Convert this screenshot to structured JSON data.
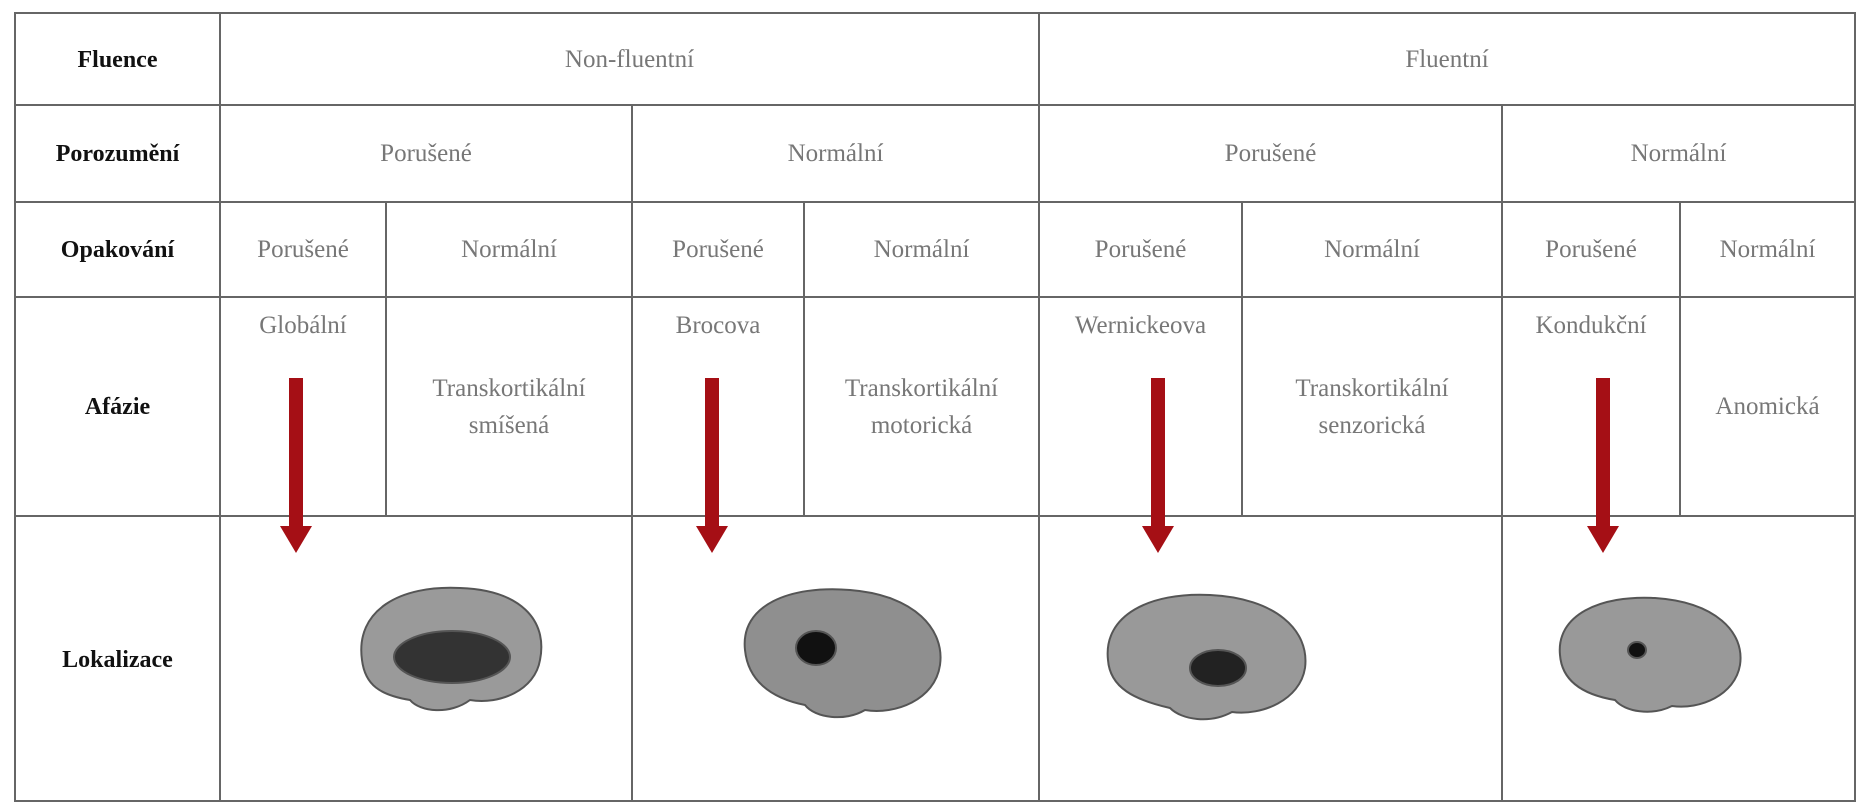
{
  "table": {
    "rows": [
      {
        "label": "Fluence",
        "cells": [
          "Non-fluentní",
          "Fluentní"
        ]
      },
      {
        "label": "Porozumění",
        "cells": [
          "Porušené",
          "Normální",
          "Porušené",
          "Normální"
        ]
      },
      {
        "label": "Opakování",
        "cells": [
          "Porušené",
          "Normální",
          "Porušené",
          "Normální",
          "Porušené",
          "Normální",
          "Porušené",
          "Normální"
        ]
      },
      {
        "label": "Afázie",
        "cells": [
          "Globální",
          "Transkortikální smíšená",
          "Brocova",
          "Transkortikální motorická",
          "Wernickeova",
          "Transkortikální senzorická",
          "Kondukční",
          "Anomická"
        ]
      },
      {
        "label": "Lokalizace",
        "cells": []
      }
    ]
  }
}
